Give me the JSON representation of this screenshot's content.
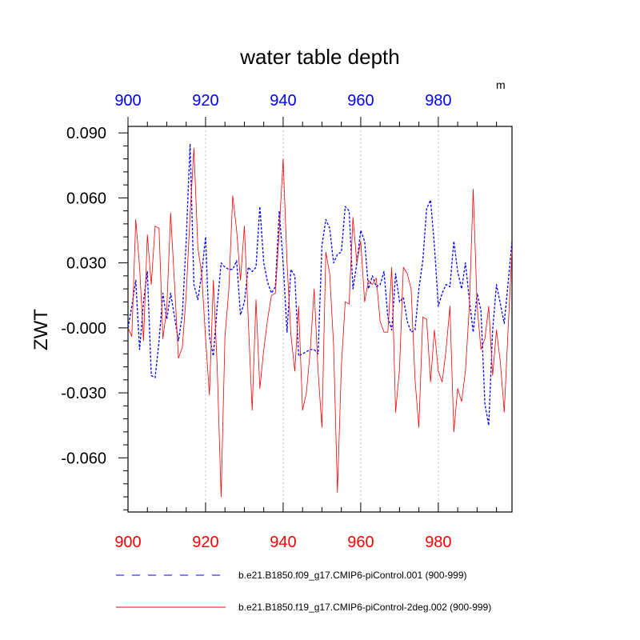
{
  "title": "water table depth",
  "units_label": "m",
  "colors": {
    "series1": "#0000ff",
    "series2": "#ff0000",
    "grid": "#bdbdbd",
    "axis": "#000000"
  },
  "chart_data": {
    "type": "line",
    "title": "water table depth",
    "ylabel": "ZWT",
    "xlabel": "",
    "xlim": [
      900,
      999
    ],
    "ylim": [
      -0.085,
      0.093
    ],
    "xticks": [
      900,
      920,
      940,
      960,
      980
    ],
    "xtick_labels": [
      "900",
      "920",
      "940",
      "960",
      "980"
    ],
    "yticks": [
      -0.06,
      -0.03,
      0.0,
      0.03,
      0.06,
      0.09
    ],
    "ytick_labels": [
      "-0.060",
      "-0.030",
      "-0.000",
      "0.030",
      "0.060",
      "0.090"
    ],
    "grid": "vertical dotted at major x ticks",
    "legend_position": "bottom",
    "x": [
      900,
      901,
      902,
      903,
      904,
      905,
      906,
      907,
      908,
      909,
      910,
      911,
      912,
      913,
      914,
      915,
      916,
      917,
      918,
      919,
      920,
      921,
      922,
      923,
      924,
      925,
      926,
      927,
      928,
      929,
      930,
      931,
      932,
      933,
      934,
      935,
      936,
      937,
      938,
      939,
      940,
      941,
      942,
      943,
      944,
      945,
      946,
      947,
      948,
      949,
      950,
      951,
      952,
      953,
      954,
      955,
      956,
      957,
      958,
      959,
      960,
      961,
      962,
      963,
      964,
      965,
      966,
      967,
      968,
      969,
      970,
      971,
      972,
      973,
      974,
      975,
      976,
      977,
      978,
      979,
      980,
      981,
      982,
      983,
      984,
      985,
      986,
      987,
      988,
      989,
      990,
      991,
      992,
      993,
      994,
      995,
      996,
      997,
      998,
      999
    ],
    "series": [
      {
        "name": "b.e21.B1850.f09_g17.CMIP6-piControl.001 (900-999)",
        "style": "dashed",
        "color": "#0000ff",
        "values": [
          0.0,
          0.01,
          0.022,
          -0.01,
          0.012,
          0.026,
          -0.022,
          -0.023,
          -0.006,
          0.016,
          0.004,
          0.016,
          0.005,
          -0.006,
          0.006,
          0.04,
          0.085,
          0.02,
          0.013,
          0.025,
          0.042,
          -0.004,
          -0.013,
          0.01,
          0.03,
          0.028,
          0.027,
          0.027,
          0.031,
          0.006,
          0.012,
          0.028,
          0.026,
          0.028,
          0.056,
          0.03,
          0.021,
          0.016,
          0.019,
          0.054,
          0.03,
          -0.002,
          0.027,
          0.024,
          -0.013,
          -0.012,
          -0.011,
          -0.01,
          -0.01,
          -0.012,
          0.038,
          0.05,
          0.046,
          0.03,
          0.034,
          0.035,
          0.056,
          0.054,
          0.018,
          0.03,
          0.045,
          0.04,
          0.018,
          0.024,
          0.019,
          0.02,
          0.026,
          0.005,
          -0.001,
          0.025,
          0.012,
          0.014,
          0.003,
          -0.002,
          -0.001,
          0.018,
          0.031,
          0.055,
          0.059,
          0.038,
          0.01,
          0.016,
          0.02,
          0.019,
          0.04,
          0.026,
          0.018,
          0.03,
          0.013,
          -0.002,
          0.016,
          0.008,
          -0.035,
          -0.045,
          -0.001,
          0.02,
          0.011,
          0.002,
          0.021,
          0.04
        ]
      },
      {
        "name": "b.e21.B1850.f19_g17.CMIP6-piControl-2deg.002 (900-999)",
        "style": "solid",
        "color": "#ff0000",
        "values": [
          0.0,
          -0.004,
          0.05,
          0.028,
          -0.006,
          0.043,
          0.02,
          0.047,
          0.046,
          -0.005,
          0.009,
          0.053,
          0.02,
          -0.014,
          -0.009,
          0.015,
          0.052,
          0.083,
          0.037,
          0.025,
          -0.005,
          -0.031,
          0.022,
          -0.018,
          -0.078,
          -0.004,
          0.018,
          0.061,
          0.045,
          0.022,
          0.047,
          0.004,
          -0.038,
          0.013,
          -0.028,
          -0.01,
          0.004,
          0.015,
          0.016,
          0.045,
          0.078,
          0.03,
          -0.003,
          -0.02,
          0.01,
          -0.038,
          -0.03,
          -0.01,
          0.018,
          -0.02,
          -0.046,
          0.035,
          0.025,
          -0.008,
          -0.076,
          -0.018,
          0.012,
          0.011,
          0.051,
          0.03,
          0.04,
          0.012,
          0.022,
          0.02,
          0.023,
          0.003,
          -0.002,
          -0.002,
          0.028,
          -0.039,
          -0.019,
          0.028,
          0.025,
          0.018,
          -0.024,
          -0.046,
          0.005,
          0.004,
          -0.025,
          -0.001,
          -0.02,
          -0.025,
          -0.01,
          0.01,
          -0.048,
          -0.028,
          -0.034,
          -0.02,
          0.01,
          0.064,
          0.01,
          -0.01,
          -0.005,
          0.01,
          -0.022,
          -0.001,
          -0.016,
          -0.039,
          0.0,
          0.036
        ]
      }
    ]
  }
}
